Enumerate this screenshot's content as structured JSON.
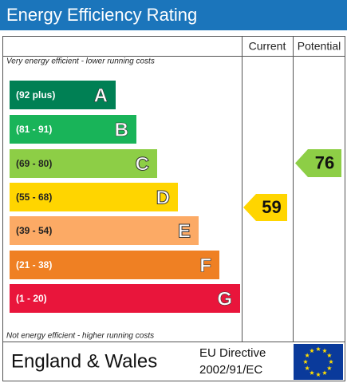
{
  "header": {
    "title": "Energy Efficiency Rating"
  },
  "columns": {
    "current": "Current",
    "potential": "Potential"
  },
  "top_note": "Very energy efficient - lower running costs",
  "bottom_note": "Not energy efficient - higher running costs",
  "bands": [
    {
      "range": "(92 plus)",
      "letter": "A",
      "color": "#008054"
    },
    {
      "range": "(81 - 91)",
      "letter": "B",
      "color": "#19b459"
    },
    {
      "range": "(69 - 80)",
      "letter": "C",
      "color": "#8dce46"
    },
    {
      "range": "(55 - 68)",
      "letter": "D",
      "color": "#ffd500"
    },
    {
      "range": "(39 - 54)",
      "letter": "E",
      "color": "#fcaa65"
    },
    {
      "range": "(21 - 38)",
      "letter": "F",
      "color": "#ef8023"
    },
    {
      "range": "(1 - 20)",
      "letter": "G",
      "color": "#e9153b"
    }
  ],
  "current": {
    "value": 59,
    "color": "#ffd500"
  },
  "potential": {
    "value": 76,
    "color": "#8dce46"
  },
  "footer": {
    "region": "England & Wales",
    "directive_line1": "EU Directive",
    "directive_line2": "2002/91/EC"
  }
}
